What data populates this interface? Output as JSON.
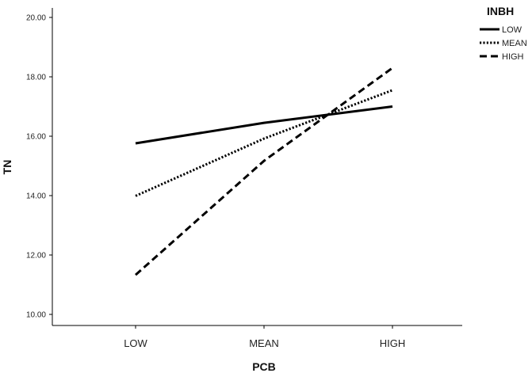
{
  "chart_data": {
    "type": "line",
    "categories": [
      "LOW",
      "MEAN",
      "HIGH"
    ],
    "series": [
      {
        "name": "LOW",
        "values": [
          15.76,
          16.45,
          17.0
        ],
        "dash": "solid"
      },
      {
        "name": "MEAN",
        "values": [
          13.99,
          15.92,
          17.55
        ],
        "dash": "dotted"
      },
      {
        "name": "HIGH",
        "values": [
          11.33,
          15.17,
          18.3
        ],
        "dash": "dashed"
      }
    ],
    "title": "",
    "xlabel": "PCB",
    "ylabel": "TN",
    "ylim": [
      10.0,
      20.0
    ],
    "yticks": [
      "10.00",
      "12.00",
      "14.00",
      "16.00",
      "18.00",
      "20.00"
    ],
    "legend_title": "INBH",
    "legend_position": "top-right",
    "grid": false,
    "line_color": "#000000"
  }
}
